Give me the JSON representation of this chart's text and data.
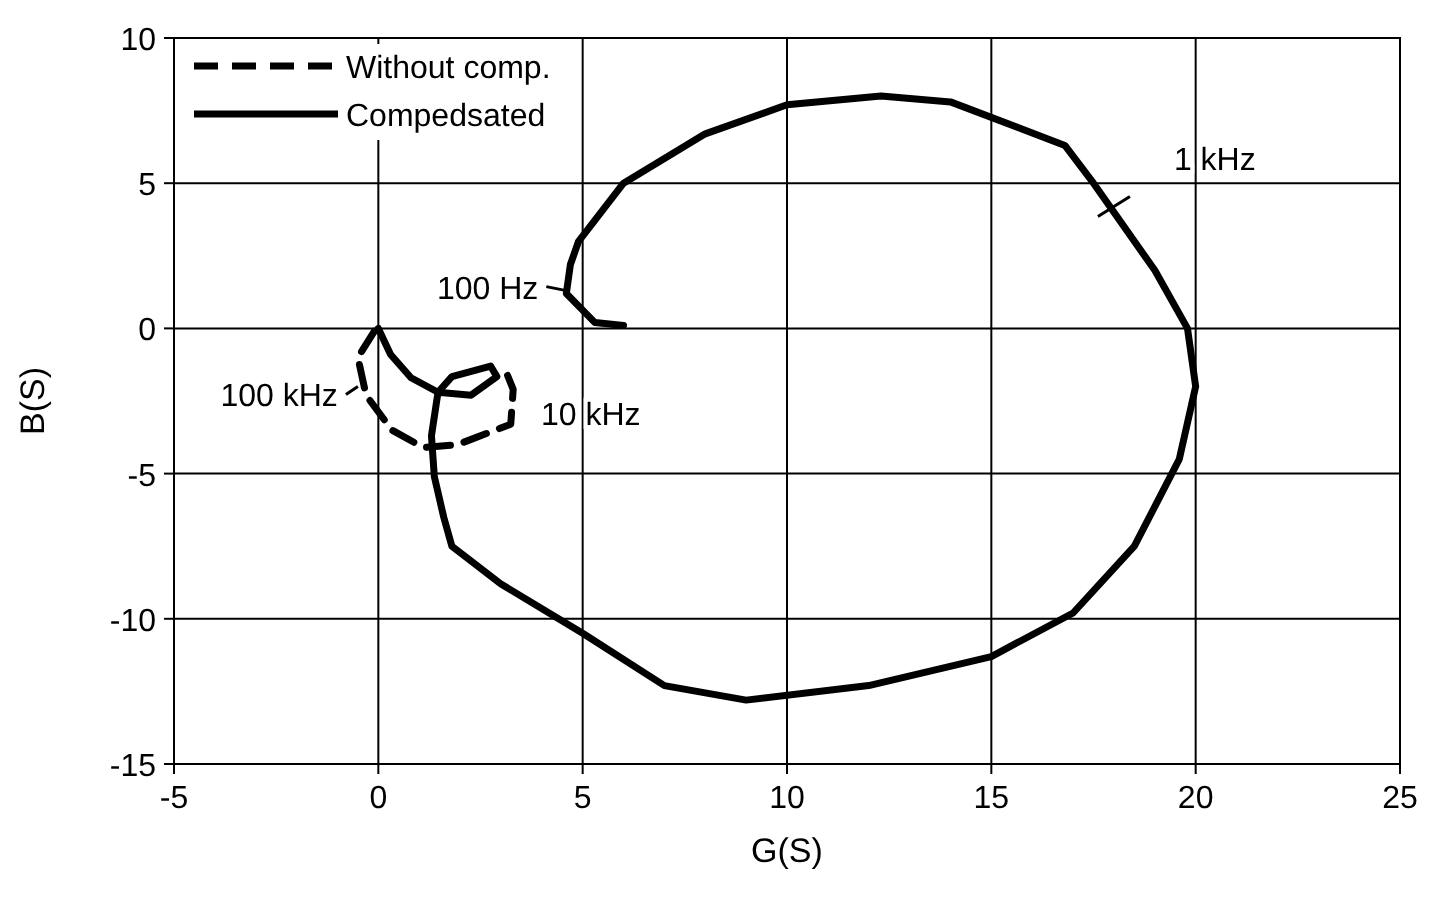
{
  "chart_data": {
    "type": "line",
    "xlabel": "G(S)",
    "ylabel": "B(S)",
    "xlim": [
      -5,
      25
    ],
    "xticks": [
      -5,
      0,
      5,
      10,
      15,
      20,
      25
    ],
    "ylim": [
      -15,
      10
    ],
    "yticks": [
      -15,
      -10,
      -5,
      0,
      5,
      10
    ],
    "grid": true,
    "legend": "top left",
    "marker": "none",
    "series": [
      {
        "name": "Without comp.",
        "color": "#000000",
        "line_style": "dashed",
        "x": [
          -0.1,
          -0.5,
          -0.3,
          0.33,
          1.1,
          1.94,
          3.24,
          3.3,
          3.07
        ],
        "values": [
          -0.1,
          -1,
          -2.3,
          -3.5,
          -4.1,
          -4.0,
          -3.3,
          -2.1,
          -1.3
        ]
      },
      {
        "name": "Compedsated",
        "color": "#000000",
        "line_style": "solid",
        "x": [
          6,
          5.3,
          4.6,
          4.7,
          4.9,
          6,
          8,
          10,
          12.3,
          14,
          16.8,
          17.5,
          18,
          19,
          19.8,
          20,
          19.6,
          18.5,
          17,
          15,
          12,
          9,
          7,
          5,
          3,
          1.8,
          1.6,
          1.37,
          1.3,
          1.46,
          1.8,
          2.75,
          2.9,
          2.27,
          1.46,
          0.8,
          0.3,
          0
        ],
        "values": [
          0.1,
          0.2,
          1.2,
          2.2,
          3,
          5,
          6.7,
          7.7,
          8,
          7.8,
          6.3,
          5,
          4,
          2,
          0,
          -2,
          -4.5,
          -7.5,
          -9.8,
          -11.3,
          -12.3,
          -12.8,
          -12.3,
          -10.5,
          -8.8,
          -7.5,
          -6.5,
          -5.1,
          -3.7,
          -2.2,
          -1.66,
          -1.3,
          -1.66,
          -2.3,
          -2.2,
          -1.7,
          -0.9,
          0
        ]
      }
    ],
    "annotations": [
      {
        "text": "100 Hz",
        "x": 4.6,
        "y": 1.3
      },
      {
        "text": "1 kHz",
        "x": 18,
        "y": 4.2
      },
      {
        "text": "10 kHz",
        "x": 3.1,
        "y": -1.4
      },
      {
        "text": "100 kHz",
        "x": -0.5,
        "y": -2
      }
    ]
  }
}
